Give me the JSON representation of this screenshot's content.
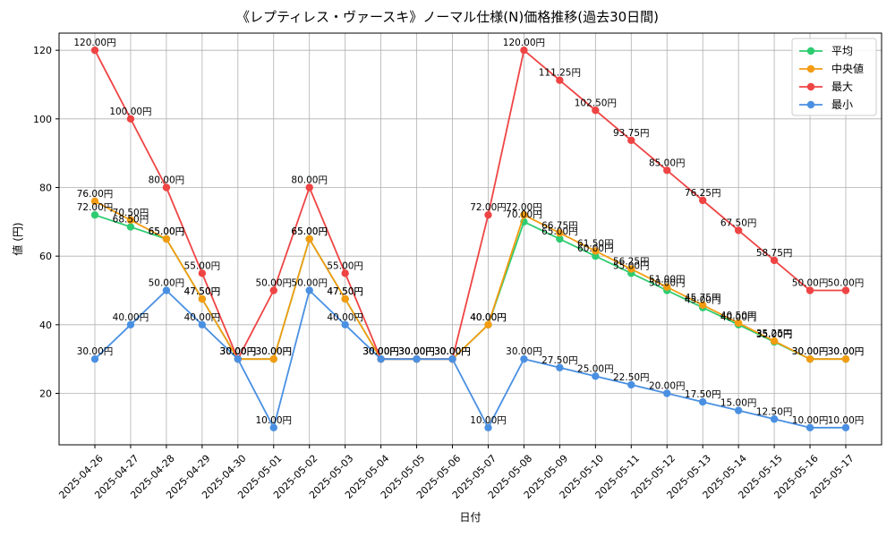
{
  "chart_data": {
    "type": "line",
    "title": "《レプティレス・ヴァースキ》ノーマル仕様(N)価格推移(過去30日間)",
    "xlabel": "日付",
    "ylabel": "値 (円)",
    "ylim": [
      5,
      125
    ],
    "yticks": [
      20,
      40,
      60,
      80,
      100,
      120
    ],
    "grid": true,
    "legend_position": "top-right",
    "value_suffix": "円",
    "categories": [
      "2025-04-26",
      "2025-04-27",
      "2025-04-28",
      "2025-04-29",
      "2025-04-30",
      "2025-05-01",
      "2025-05-02",
      "2025-05-03",
      "2025-05-04",
      "2025-05-05",
      "2025-05-06",
      "2025-05-07",
      "2025-05-08",
      "2025-05-09",
      "2025-05-10",
      "2025-05-11",
      "2025-05-12",
      "2025-05-13",
      "2025-05-14",
      "2025-05-15",
      "2025-05-16",
      "2025-05-17"
    ],
    "series": [
      {
        "name": "平均",
        "color": "#2ecc71",
        "values": [
          72,
          68.5,
          65,
          47.5,
          30,
          30,
          65,
          47.5,
          30,
          30,
          30,
          40,
          70,
          65,
          60,
          55,
          50,
          45,
          40,
          35,
          30,
          30
        ]
      },
      {
        "name": "中央値",
        "color": "#f39c12",
        "values": [
          76,
          70.5,
          65,
          47.5,
          30,
          30,
          65,
          47.5,
          30,
          30,
          30,
          40,
          72,
          66.75,
          61.5,
          56.25,
          51,
          45.75,
          40.5,
          35.25,
          30,
          30
        ]
      },
      {
        "name": "最大",
        "color": "#ef4444",
        "values": [
          120,
          100,
          80,
          55,
          30,
          50,
          80,
          55,
          30,
          30,
          30,
          72,
          120,
          111.25,
          102.5,
          93.75,
          85,
          76.25,
          67.5,
          58.75,
          50,
          50
        ]
      },
      {
        "name": "最小",
        "color": "#4a90e2",
        "values": [
          30,
          40,
          50,
          40,
          30,
          10,
          50,
          40,
          30,
          30,
          30,
          10,
          30,
          27.5,
          25,
          22.5,
          20,
          17.5,
          15,
          12.5,
          10,
          10
        ]
      }
    ]
  }
}
